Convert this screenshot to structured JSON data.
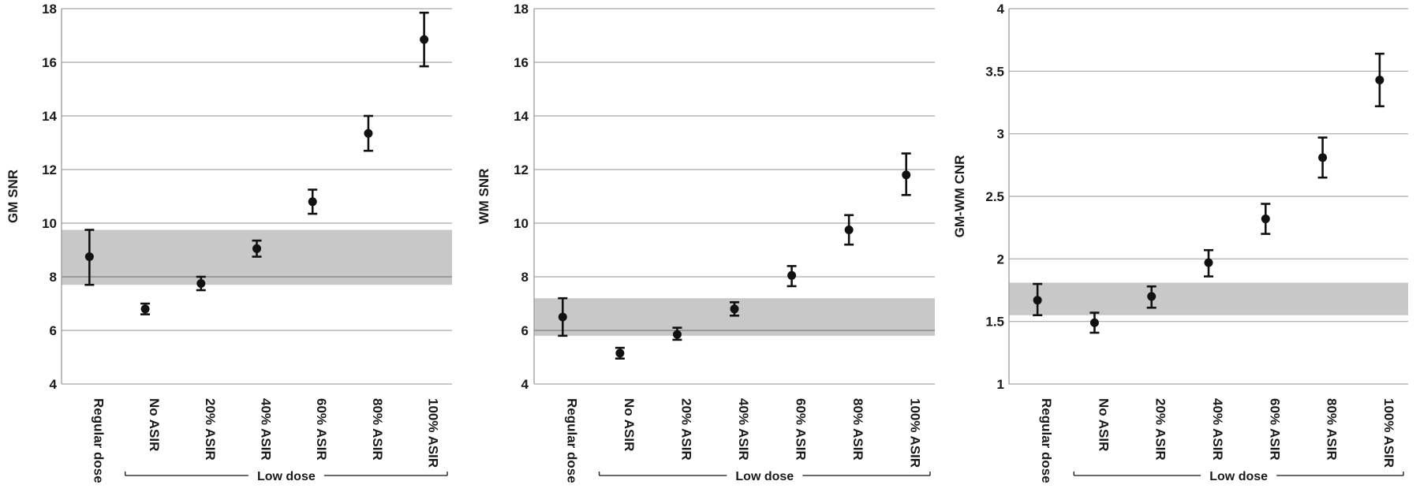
{
  "chart_data": [
    {
      "type": "scatter",
      "ylabel": "GM SNR",
      "ylim": [
        4,
        18
      ],
      "yticks": [
        4,
        6,
        8,
        10,
        12,
        14,
        16,
        18
      ],
      "categories": [
        "Regular dose",
        "No ASIR",
        "20% ASIR",
        "40% ASIR",
        "60% ASIR",
        "80% ASIR",
        "100% ASIR"
      ],
      "values": [
        8.75,
        6.8,
        7.75,
        9.05,
        10.8,
        13.35,
        16.85
      ],
      "err_low": [
        7.7,
        6.6,
        7.5,
        8.75,
        10.35,
        12.7,
        15.85
      ],
      "err_high": [
        9.75,
        7.0,
        8.0,
        9.35,
        11.25,
        14.0,
        17.85
      ],
      "reference_band": [
        7.7,
        9.75
      ],
      "reference_line": 8.0,
      "group_label": "Low dose",
      "grid": true
    },
    {
      "type": "scatter",
      "ylabel": "WM SNR",
      "ylim": [
        4,
        18
      ],
      "yticks": [
        4,
        6,
        8,
        10,
        12,
        14,
        16,
        18
      ],
      "categories": [
        "Regular dose",
        "No ASIR",
        "20% ASIR",
        "40% ASIR",
        "60% ASIR",
        "80% ASIR",
        "100% ASIR"
      ],
      "values": [
        6.5,
        5.15,
        5.85,
        6.8,
        8.05,
        9.75,
        11.8
      ],
      "err_low": [
        5.8,
        4.95,
        5.65,
        6.55,
        7.65,
        9.2,
        11.05
      ],
      "err_high": [
        7.2,
        5.35,
        6.1,
        7.05,
        8.4,
        10.3,
        12.6
      ],
      "reference_band": [
        5.8,
        7.2
      ],
      "reference_line": 6.0,
      "group_label": "Low dose",
      "grid": true
    },
    {
      "type": "scatter",
      "ylabel": "GM-WM CNR",
      "ylim": [
        1,
        4
      ],
      "yticks": [
        1,
        1.5,
        2,
        2.5,
        3,
        3.5,
        4
      ],
      "categories": [
        "Regular dose",
        "No ASIR",
        "20% ASIR",
        "40% ASIR",
        "60% ASIR",
        "80% ASIR",
        "100% ASIR"
      ],
      "values": [
        1.67,
        1.49,
        1.7,
        1.97,
        2.32,
        2.81,
        3.43
      ],
      "err_low": [
        1.55,
        1.41,
        1.61,
        1.86,
        2.2,
        2.65,
        3.22
      ],
      "err_high": [
        1.8,
        1.57,
        1.78,
        2.07,
        2.44,
        2.97,
        3.64
      ],
      "reference_band": [
        1.55,
        1.81
      ],
      "group_label": "Low dose",
      "grid": true
    }
  ]
}
